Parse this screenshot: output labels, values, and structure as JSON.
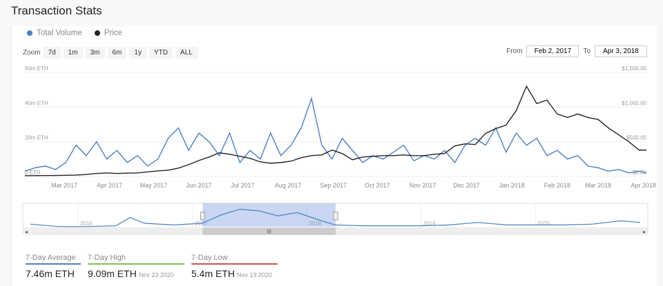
{
  "title": "Transaction Stats",
  "legend": [
    {
      "label": "Total Volume",
      "color": "#4a7fc1"
    },
    {
      "label": "Price",
      "color": "#222222"
    }
  ],
  "zoom": {
    "label": "Zoom",
    "buttons": [
      "7d",
      "1m",
      "3m",
      "6m",
      "1y",
      "YTD",
      "ALL"
    ]
  },
  "range": {
    "from_label": "From",
    "from": "Feb 2, 2017",
    "to_label": "To",
    "to": "Apr 3, 2018"
  },
  "chart_data": {
    "type": "line",
    "left_axis": {
      "ticks": [
        "0 ETH",
        "20m ETH",
        "40m ETH",
        "60m ETH"
      ],
      "range": [
        0,
        60
      ]
    },
    "right_axis": {
      "ticks": [
        "$0.00",
        "$500.00",
        "$1,000.00",
        "$1,500.00"
      ],
      "range": [
        0,
        1500
      ]
    },
    "x_ticks": [
      "Mar 2017",
      "Apr 2017",
      "May 2017",
      "Jun 2017",
      "Jul 2017",
      "Aug 2017",
      "Sep 2017",
      "Oct 2017",
      "Nov 2017",
      "Dec 2017",
      "Jan 2018",
      "Feb 2018",
      "Mar 2018",
      "Apr 2018"
    ],
    "x_tick_dates": [
      "2017-03-01",
      "2017-04-01",
      "2017-05-01",
      "2017-06-01",
      "2017-07-01",
      "2017-08-01",
      "2017-09-01",
      "2017-10-01",
      "2017-11-01",
      "2017-12-01",
      "2018-01-01",
      "2018-02-01",
      "2018-03-01",
      "2018-04-01"
    ],
    "x_range": [
      "2017-02-02",
      "2018-04-03"
    ],
    "x": [
      "2017-02-02",
      "2017-02-09",
      "2017-02-16",
      "2017-02-23",
      "2017-03-02",
      "2017-03-09",
      "2017-03-16",
      "2017-03-23",
      "2017-03-30",
      "2017-04-06",
      "2017-04-13",
      "2017-04-20",
      "2017-04-27",
      "2017-05-04",
      "2017-05-11",
      "2017-05-18",
      "2017-05-25",
      "2017-06-01",
      "2017-06-08",
      "2017-06-15",
      "2017-06-22",
      "2017-06-29",
      "2017-07-06",
      "2017-07-13",
      "2017-07-20",
      "2017-07-27",
      "2017-08-03",
      "2017-08-10",
      "2017-08-17",
      "2017-08-24",
      "2017-08-31",
      "2017-09-07",
      "2017-09-14",
      "2017-09-21",
      "2017-09-28",
      "2017-10-05",
      "2017-10-12",
      "2017-10-19",
      "2017-10-26",
      "2017-11-02",
      "2017-11-09",
      "2017-11-16",
      "2017-11-23",
      "2017-11-30",
      "2017-12-07",
      "2017-12-14",
      "2017-12-21",
      "2017-12-28",
      "2018-01-04",
      "2018-01-11",
      "2018-01-18",
      "2018-01-25",
      "2018-02-01",
      "2018-02-08",
      "2018-02-15",
      "2018-02-22",
      "2018-03-01",
      "2018-03-08",
      "2018-03-15",
      "2018-03-22",
      "2018-03-29",
      "2018-04-03"
    ],
    "series": [
      {
        "name": "Total Volume",
        "unit": "m ETH",
        "axis": "left",
        "color": "#4a7fc1",
        "values": [
          3,
          5,
          6,
          4,
          8,
          18,
          12,
          20,
          10,
          15,
          8,
          12,
          6,
          10,
          22,
          28,
          15,
          25,
          20,
          12,
          25,
          8,
          15,
          10,
          25,
          12,
          18,
          28,
          45,
          18,
          10,
          22,
          15,
          8,
          12,
          10,
          14,
          18,
          9,
          12,
          10,
          15,
          8,
          18,
          22,
          18,
          28,
          14,
          25,
          18,
          22,
          12,
          15,
          10,
          12,
          6,
          5,
          3,
          4,
          2,
          3,
          2
        ]
      },
      {
        "name": "Price",
        "unit": "USD",
        "axis": "right",
        "color": "#222222",
        "values": [
          11,
          12,
          13,
          14,
          17,
          19,
          28,
          43,
          50,
          43,
          48,
          50,
          65,
          80,
          90,
          120,
          170,
          230,
          280,
          340,
          320,
          290,
          260,
          210,
          190,
          200,
          220,
          270,
          300,
          310,
          380,
          330,
          240,
          280,
          290,
          300,
          300,
          310,
          300,
          300,
          320,
          330,
          440,
          470,
          460,
          620,
          690,
          740,
          950,
          1300,
          1050,
          1100,
          900,
          850,
          900,
          850,
          820,
          700,
          600,
          500,
          380,
          380
        ]
      }
    ],
    "navigator": {
      "year_labels": [
        "2016",
        "2017",
        "2018",
        "2019",
        "2020"
      ],
      "x_range": [
        "2015-07-15",
        "2020-12-10"
      ],
      "selected": [
        "2017-02-02",
        "2018-04-03"
      ],
      "x": [
        "2015-08-01",
        "2015-11-01",
        "2016-02-01",
        "2016-05-01",
        "2016-06-15",
        "2016-08-01",
        "2016-11-01",
        "2017-02-01",
        "2017-04-01",
        "2017-06-01",
        "2017-08-01",
        "2017-10-01",
        "2017-12-01",
        "2018-02-01",
        "2018-04-01",
        "2018-07-01",
        "2018-10-01",
        "2019-01-01",
        "2019-04-01",
        "2019-07-01",
        "2019-10-01",
        "2020-01-01",
        "2020-04-01",
        "2020-07-01",
        "2020-10-01",
        "2020-12-01"
      ],
      "values": [
        4,
        1,
        1,
        2,
        12,
        5,
        3,
        5,
        15,
        22,
        20,
        14,
        18,
        10,
        3,
        2,
        2,
        2,
        3,
        6,
        3,
        3,
        3,
        4,
        8,
        6
      ]
    }
  },
  "stats": [
    {
      "label": "7-Day Average",
      "value": "7.46m ETH",
      "date": "",
      "color": "#4a7fc1"
    },
    {
      "label": "7-Day High",
      "value": "9.09m ETH",
      "date": "Nov 23 2020",
      "color": "#7cc14a"
    },
    {
      "label": "7-Day Low",
      "value": "5.4m ETH",
      "date": "Nov 19 2020",
      "color": "#d0534a"
    }
  ]
}
